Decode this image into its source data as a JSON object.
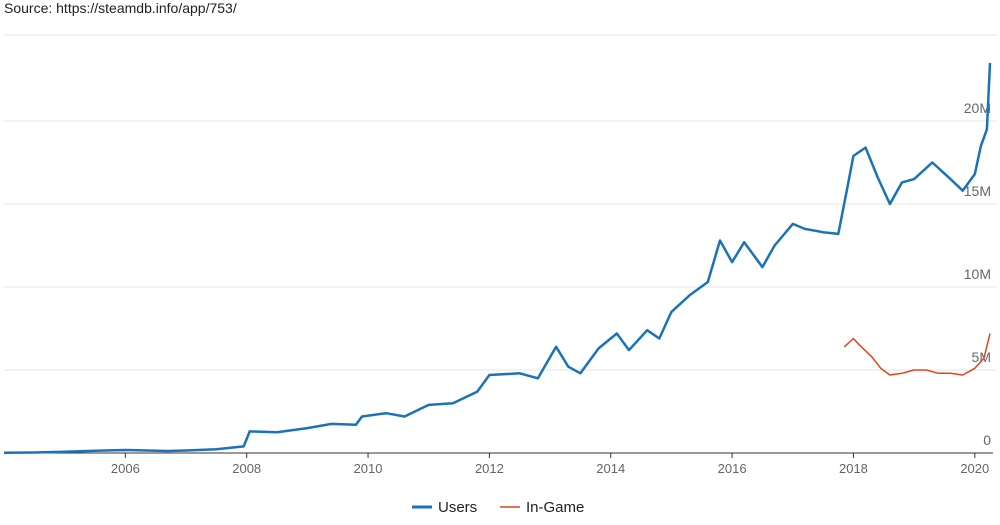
{
  "source_text": "Source: https://steamdb.info/app/753/",
  "colors": {
    "users": "#1a73b8",
    "in_game": "#e2431e",
    "grid": "#e6e6e6",
    "axis": "#333333"
  },
  "chart_data": {
    "type": "line",
    "title": "",
    "xlabel": "",
    "ylabel": "",
    "xlim": [
      2004.0,
      2020.3
    ],
    "ylim": [
      0,
      25000000
    ],
    "x_ticks": [
      2006,
      2008,
      2010,
      2012,
      2014,
      2016,
      2018,
      2020
    ],
    "x_tick_labels": [
      "2006",
      "2008",
      "2010",
      "2012",
      "2014",
      "2016",
      "2018",
      "2020"
    ],
    "y_ticks": [
      0,
      5000000,
      10000000,
      15000000,
      20000000
    ],
    "y_tick_labels": [
      "0",
      "5M",
      "10M",
      "15M",
      "20M"
    ],
    "grid": true,
    "legend": "bottom",
    "series": [
      {
        "name": "Users",
        "color": "#1a73b8",
        "points": [
          [
            2004.0,
            10000
          ],
          [
            2004.5,
            30000
          ],
          [
            2005.0,
            80000
          ],
          [
            2005.5,
            130000
          ],
          [
            2006.0,
            180000
          ],
          [
            2006.7,
            120000
          ],
          [
            2007.0,
            150000
          ],
          [
            2007.5,
            230000
          ],
          [
            2007.95,
            400000
          ],
          [
            2008.05,
            1300000
          ],
          [
            2008.5,
            1250000
          ],
          [
            2009.0,
            1500000
          ],
          [
            2009.4,
            1750000
          ],
          [
            2009.8,
            1700000
          ],
          [
            2009.9,
            2200000
          ],
          [
            2010.3,
            2400000
          ],
          [
            2010.6,
            2200000
          ],
          [
            2011.0,
            2900000
          ],
          [
            2011.4,
            3000000
          ],
          [
            2011.8,
            3700000
          ],
          [
            2012.0,
            4700000
          ],
          [
            2012.5,
            4800000
          ],
          [
            2012.8,
            4500000
          ],
          [
            2013.1,
            6400000
          ],
          [
            2013.3,
            5200000
          ],
          [
            2013.5,
            4800000
          ],
          [
            2013.8,
            6300000
          ],
          [
            2014.1,
            7200000
          ],
          [
            2014.3,
            6200000
          ],
          [
            2014.6,
            7400000
          ],
          [
            2014.8,
            6900000
          ],
          [
            2015.0,
            8500000
          ],
          [
            2015.3,
            9500000
          ],
          [
            2015.6,
            10300000
          ],
          [
            2015.8,
            12800000
          ],
          [
            2016.0,
            11500000
          ],
          [
            2016.2,
            12700000
          ],
          [
            2016.5,
            11200000
          ],
          [
            2016.7,
            12500000
          ],
          [
            2017.0,
            13800000
          ],
          [
            2017.2,
            13500000
          ],
          [
            2017.5,
            13300000
          ],
          [
            2017.75,
            13200000
          ],
          [
            2017.9,
            16000000
          ],
          [
            2018.0,
            17900000
          ],
          [
            2018.2,
            18400000
          ],
          [
            2018.4,
            16600000
          ],
          [
            2018.6,
            15000000
          ],
          [
            2018.8,
            16300000
          ],
          [
            2019.0,
            16500000
          ],
          [
            2019.3,
            17500000
          ],
          [
            2019.6,
            16500000
          ],
          [
            2019.8,
            15800000
          ],
          [
            2020.0,
            16800000
          ],
          [
            2020.1,
            18500000
          ],
          [
            2020.2,
            19500000
          ],
          [
            2020.25,
            23500000
          ]
        ]
      },
      {
        "name": "In-Game",
        "color": "#e2431e",
        "points": [
          [
            2017.85,
            6400000
          ],
          [
            2018.0,
            6900000
          ],
          [
            2018.1,
            6500000
          ],
          [
            2018.3,
            5800000
          ],
          [
            2018.45,
            5100000
          ],
          [
            2018.6,
            4700000
          ],
          [
            2018.8,
            4800000
          ],
          [
            2019.0,
            5000000
          ],
          [
            2019.2,
            5000000
          ],
          [
            2019.4,
            4800000
          ],
          [
            2019.6,
            4800000
          ],
          [
            2019.8,
            4700000
          ],
          [
            2020.0,
            5100000
          ],
          [
            2020.15,
            5700000
          ],
          [
            2020.25,
            7200000
          ]
        ]
      }
    ]
  }
}
